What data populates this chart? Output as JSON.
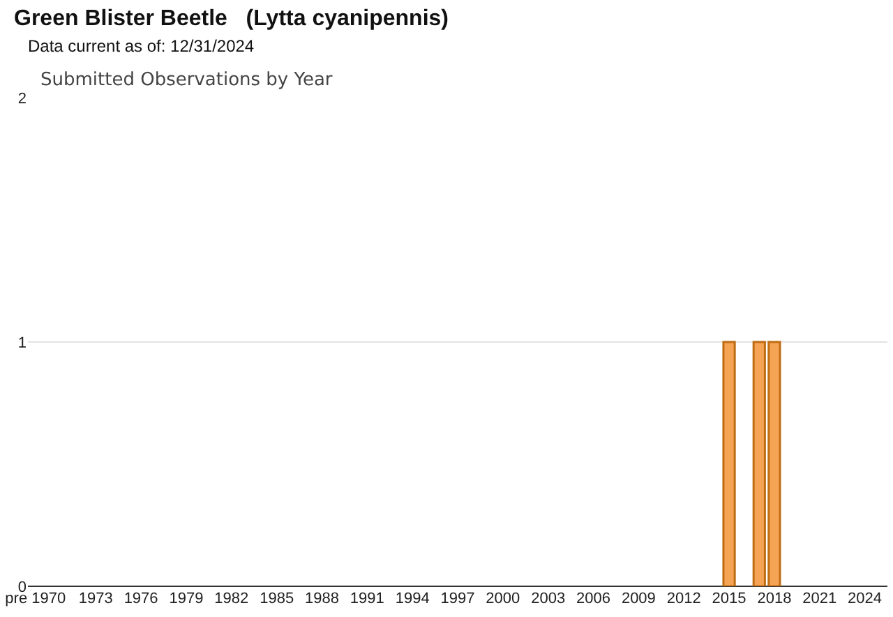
{
  "chart_data": {
    "type": "bar",
    "title": "Green Blister Beetle   (Lytta cyanipennis)",
    "subtitle": "Data current as of: 12/31/2024",
    "annotations": [
      "Submitted Observations by Year"
    ],
    "categories": [
      "pre 1970",
      null,
      null,
      null,
      "1973",
      null,
      null,
      "1976",
      null,
      null,
      "1979",
      null,
      null,
      "1982",
      null,
      null,
      "1985",
      null,
      null,
      "1988",
      null,
      null,
      "1991",
      null,
      null,
      "1994",
      null,
      null,
      "1997",
      null,
      null,
      "2000",
      null,
      null,
      "2003",
      null,
      null,
      "2006",
      null,
      null,
      "2009",
      null,
      null,
      "2012",
      null,
      null,
      "2015",
      null,
      null,
      "2018",
      null,
      null,
      "2021",
      null,
      null,
      "2024",
      null
    ],
    "values": [
      0,
      0,
      0,
      0,
      0,
      0,
      0,
      0,
      0,
      0,
      0,
      0,
      0,
      0,
      0,
      0,
      0,
      0,
      0,
      0,
      0,
      0,
      0,
      0,
      0,
      0,
      0,
      0,
      0,
      0,
      0,
      0,
      0,
      0,
      0,
      0,
      0,
      0,
      0,
      0,
      0,
      0,
      0,
      0,
      0,
      0,
      1,
      0,
      1,
      1,
      0,
      0,
      0,
      0,
      0,
      0,
      0
    ],
    "color": "#f5a455",
    "ylim": [
      0,
      2
    ],
    "yticks": [
      0,
      1,
      2
    ],
    "grid": "y"
  }
}
